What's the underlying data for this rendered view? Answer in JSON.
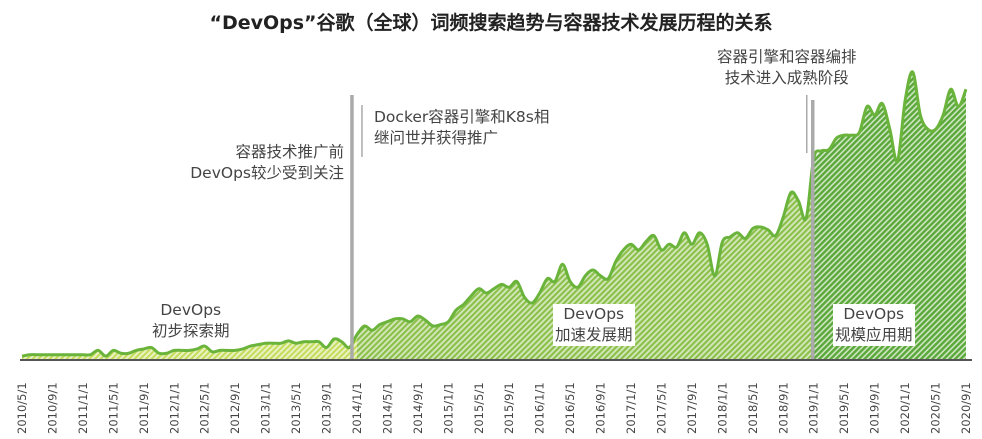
{
  "chart_data": {
    "type": "area",
    "title": "“DevOps”谷歌（全球）词频搜索趋势与容器技术发展历程的关系",
    "xlabel": "",
    "ylabel": "",
    "ylim": [
      0,
      100
    ],
    "x_start": "2010/5",
    "x_step_months": 1,
    "tick_labels": [
      "2010/5/1",
      "2010/9/1",
      "2011/1/1",
      "2011/5/1",
      "2011/9/1",
      "2012/1/1",
      "2012/5/1",
      "2012/9/1",
      "2013/1/1",
      "2013/5/1",
      "2013/9/1",
      "2014/1/1",
      "2014/5/1",
      "2014/9/1",
      "2015/1/1",
      "2015/5/1",
      "2015/9/1",
      "2016/1/1",
      "2016/5/1",
      "2016/9/1",
      "2017/1/1",
      "2017/5/1",
      "2017/9/1",
      "2018/1/1",
      "2018/5/1",
      "2018/9/1",
      "2019/1/1",
      "2019/5/1",
      "2019/9/1",
      "2020/1/1",
      "2020/5/1",
      "2020/9/1"
    ],
    "values": [
      1,
      1.5,
      1.5,
      1.5,
      1.5,
      1.5,
      1.5,
      1.5,
      1.5,
      1.5,
      3,
      1,
      3,
      2,
      2,
      3,
      3.5,
      4,
      2,
      2,
      3,
      3,
      3,
      3.5,
      4.5,
      2.5,
      3,
      3,
      3,
      3.5,
      4.5,
      5,
      5.5,
      5.5,
      5.5,
      6.3,
      5.5,
      6,
      6,
      6,
      4,
      7,
      6,
      4,
      8.5,
      11.5,
      10,
      12,
      13,
      14,
      14,
      13,
      15,
      13.5,
      11.5,
      12,
      13,
      17,
      19,
      22,
      24.5,
      23,
      24.5,
      26,
      25,
      27,
      21.5,
      19.5,
      23,
      28,
      27,
      33,
      27,
      25,
      29,
      31,
      29,
      28,
      34,
      38,
      40,
      38,
      41,
      43,
      38,
      40,
      39,
      44,
      40,
      44,
      40,
      29,
      40.8,
      42.5,
      44,
      42,
      45.5,
      46,
      45,
      43,
      49.5,
      58,
      55,
      49,
      70,
      72.5,
      73,
      77,
      78,
      78,
      79,
      88,
      85,
      89,
      80,
      69,
      90,
      100,
      85,
      80,
      80,
      85,
      94,
      88,
      94
    ],
    "phases": [
      {
        "name": "DevOps 初步探索期",
        "start_index": 0,
        "end_index": 44,
        "color": "#c5dc5a"
      },
      {
        "name": "DevOps 加速发展期",
        "start_index": 44,
        "end_index": 104,
        "color": "#8cc04a"
      },
      {
        "name": "DevOps 规模应用期",
        "start_index": 104,
        "end_index": 124,
        "color": "#5aa83a"
      }
    ],
    "line_color": "#6ab43c",
    "annotations": {
      "phase1": [
        "DevOps",
        "初步探索期"
      ],
      "phase2": [
        "DevOps",
        "加速发展期"
      ],
      "phase3": [
        "DevOps",
        "规模应用期"
      ],
      "event1": [
        "容器技术推广前",
        "DevOps较少受到关注"
      ],
      "event2": [
        "Docker容器引擎和K8s相",
        "继问世并获得推广"
      ],
      "event3": [
        "容器引擎和容器编排",
        "技术进入成熟阶段"
      ]
    }
  }
}
